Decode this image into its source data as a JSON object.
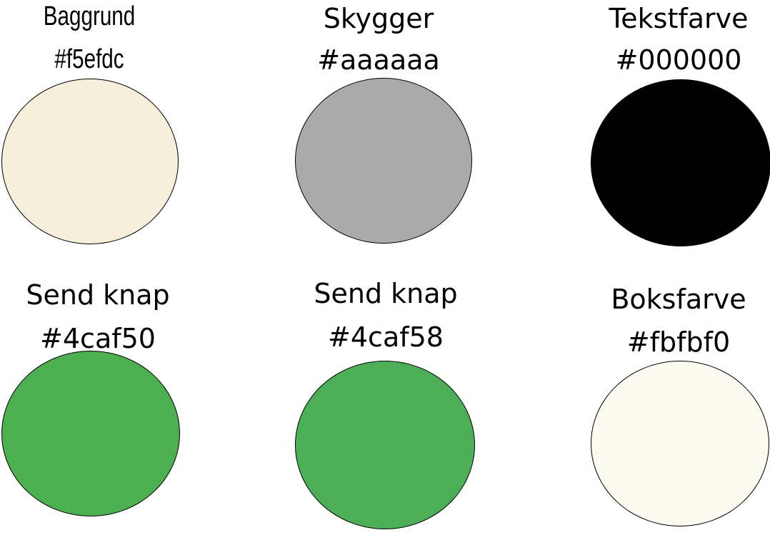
{
  "swatches": [
    {
      "name": "Baggrund",
      "hex": "#f5efdc",
      "color": "#f5efdc"
    },
    {
      "name": "Skygger",
      "hex": "#aaaaaa",
      "color": "#aaaaaa"
    },
    {
      "name": "Tekstfarve",
      "hex": "#000000",
      "color": "#000000"
    },
    {
      "name": "Send knap",
      "hex": "#4caf50",
      "color": "#4caf50"
    },
    {
      "name": "Send knap",
      "hex": "#4caf58",
      "color": "#4caf58"
    },
    {
      "name": "Boksfarve",
      "hex": "#fbfbf0",
      "color": "#fbfbf0"
    }
  ]
}
